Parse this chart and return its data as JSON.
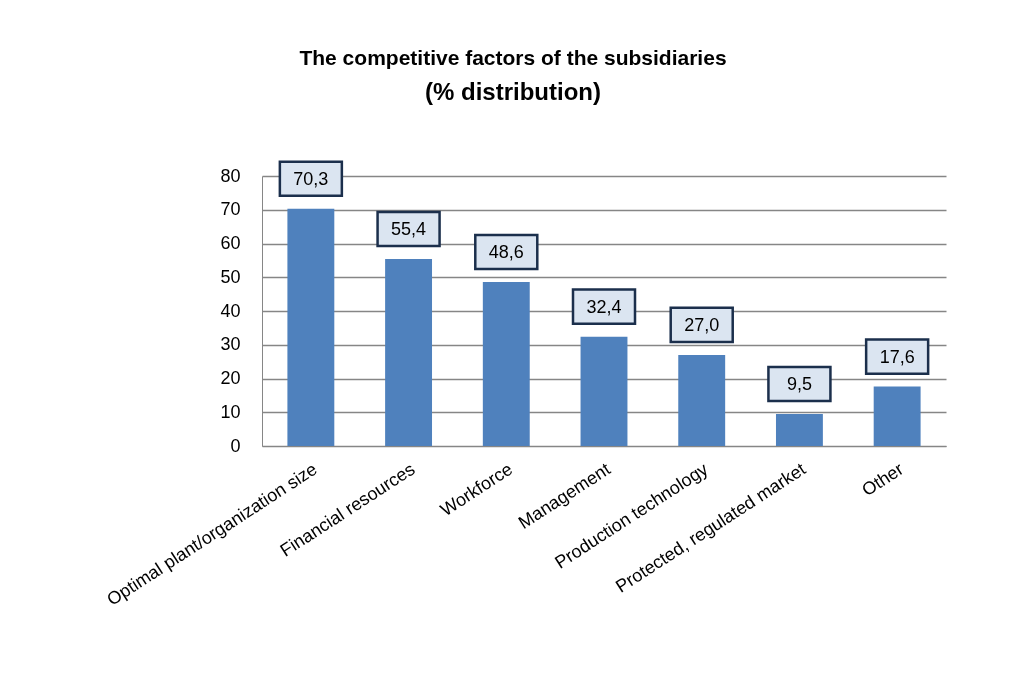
{
  "chart_data": {
    "type": "bar",
    "title": "The competitive factors of the subsidiaries",
    "subtitle": "(% distribution)",
    "categories": [
      "Optimal plant/organization size",
      "Financial resources",
      "Workforce",
      "Management",
      "Production technology",
      "Protected, regulated market",
      "Other"
    ],
    "values": [
      70.3,
      55.4,
      48.6,
      32.4,
      27.0,
      9.5,
      17.6
    ],
    "value_labels": [
      "70,3",
      "55,4",
      "48,6",
      "32,4",
      "27,0",
      "9,5",
      "17,6"
    ],
    "color": "#4f81bd",
    "ylim": [
      0,
      80
    ],
    "yticks": [
      0,
      10,
      20,
      30,
      40,
      50,
      60,
      70,
      80
    ],
    "grid": "y"
  }
}
